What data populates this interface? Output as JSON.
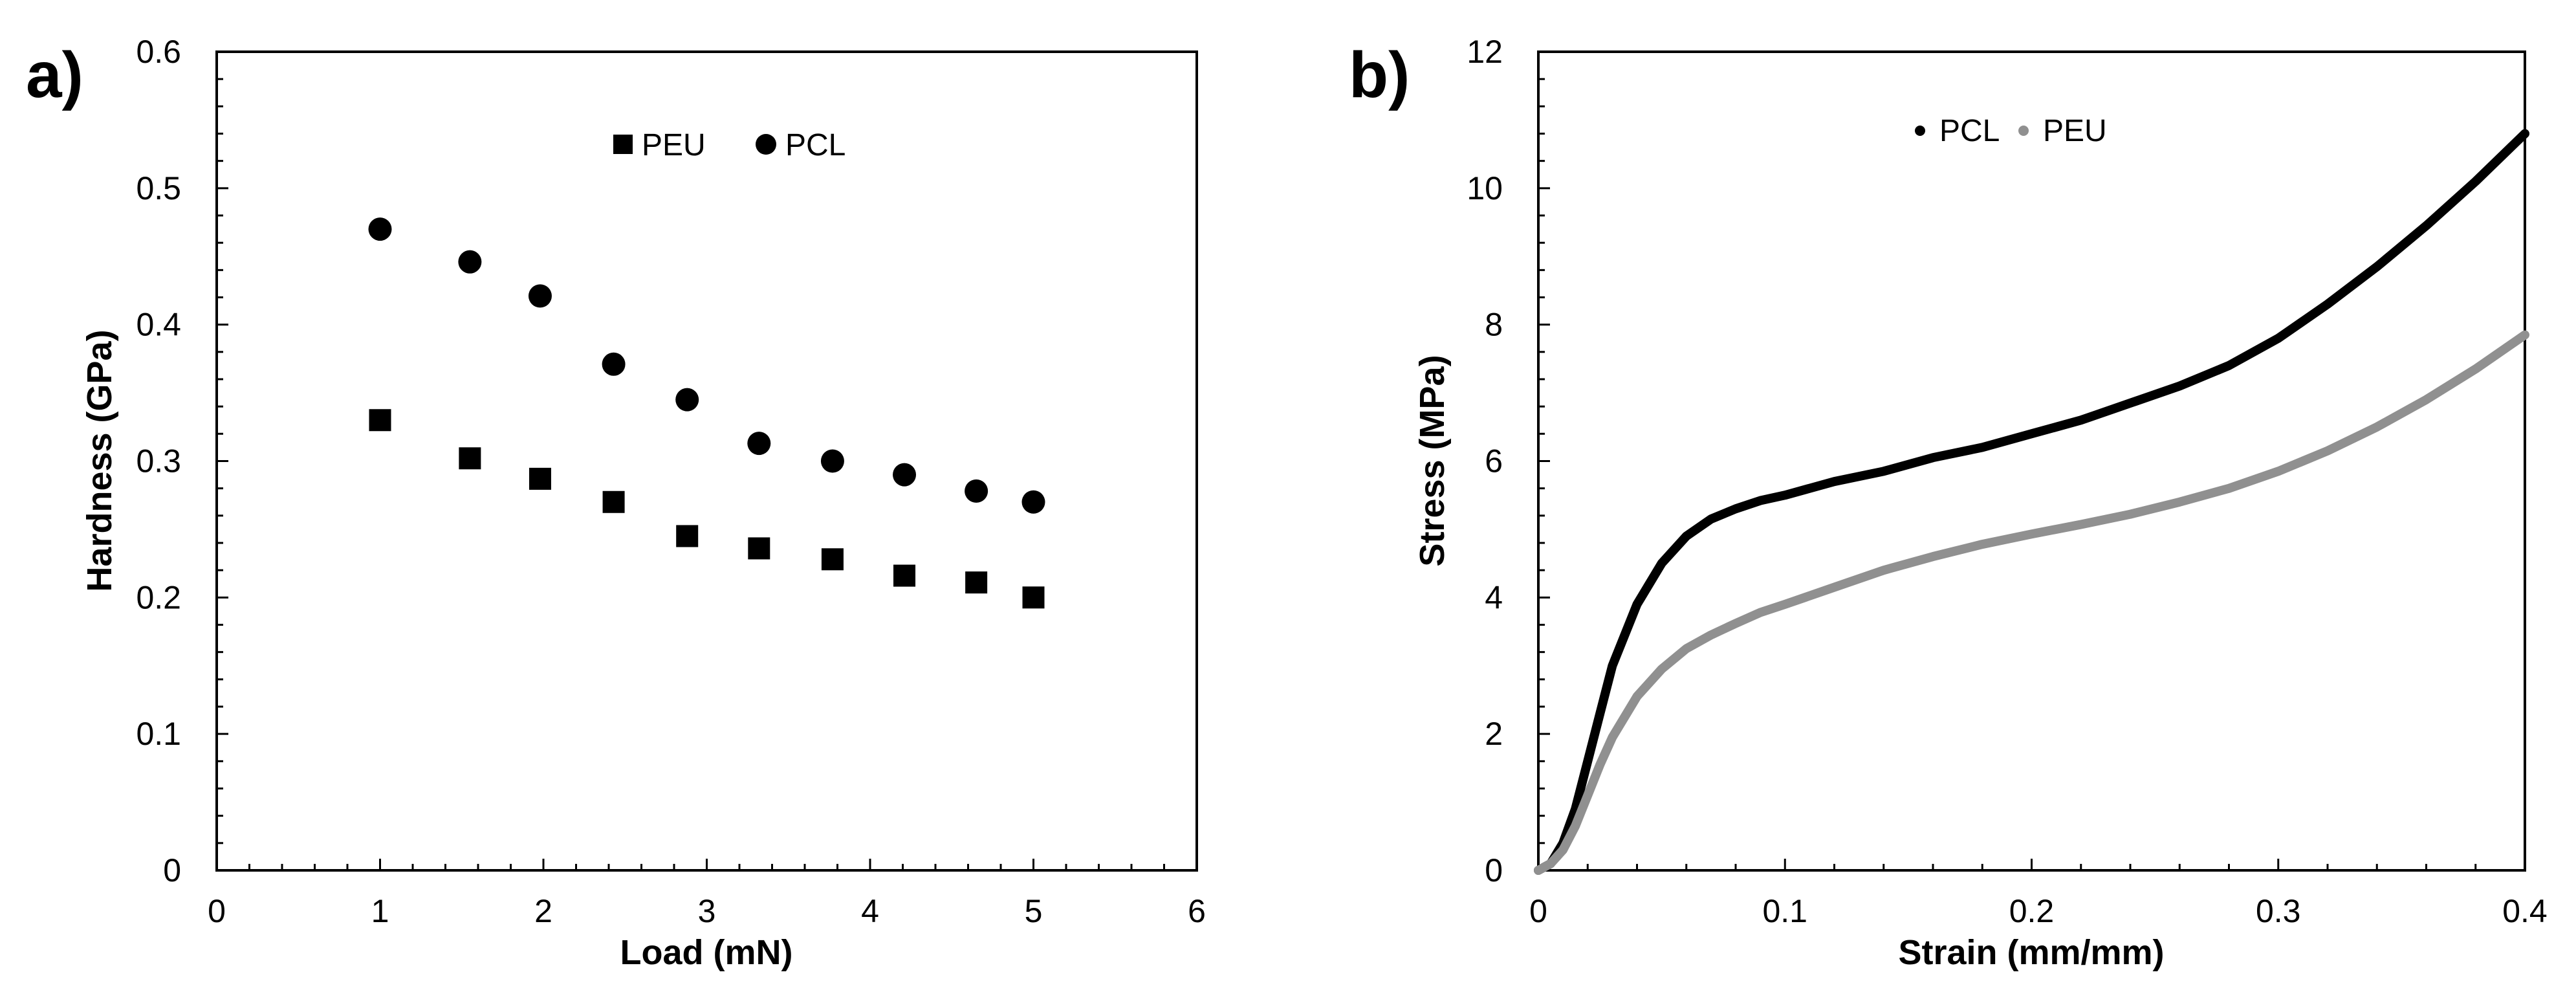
{
  "chart_data": [
    {
      "type": "scatter",
      "panel_label": "a)",
      "xlabel": "Load (mN)",
      "ylabel": "Hardness (GPa)",
      "xlim": [
        0,
        6
      ],
      "ylim": [
        0,
        0.6
      ],
      "xticks": [
        0,
        1,
        2,
        3,
        4,
        5,
        6
      ],
      "yticks": [
        0,
        0.1,
        0.2,
        0.3,
        0.4,
        0.5,
        0.6
      ],
      "xtick_labels": [
        "0",
        "1",
        "2",
        "3",
        "4",
        "5",
        "6"
      ],
      "ytick_labels": [
        "0",
        "0.1",
        "0.2",
        "0.3",
        "0.4",
        "0.5",
        "0.6"
      ],
      "minor_ticks": true,
      "grid": false,
      "legend_position": "top-center",
      "series": [
        {
          "name": "PEU",
          "marker": "square",
          "color": "#000000",
          "x": [
            1.0,
            1.55,
            1.98,
            2.43,
            2.88,
            3.32,
            3.77,
            4.21,
            4.65,
            5.0
          ],
          "y": [
            0.33,
            0.302,
            0.287,
            0.27,
            0.245,
            0.236,
            0.228,
            0.216,
            0.211,
            0.2
          ]
        },
        {
          "name": "PCL",
          "marker": "circle",
          "color": "#000000",
          "x": [
            1.0,
            1.55,
            1.98,
            2.43,
            2.88,
            3.32,
            3.77,
            4.21,
            4.65,
            5.0
          ],
          "y": [
            0.47,
            0.446,
            0.421,
            0.371,
            0.345,
            0.313,
            0.3,
            0.29,
            0.278,
            0.27
          ]
        }
      ]
    },
    {
      "type": "line",
      "panel_label": "b)",
      "xlabel": "Strain (mm/mm)",
      "ylabel": "Stress (MPa)",
      "xlim": [
        0,
        0.4
      ],
      "ylim": [
        0,
        12
      ],
      "xticks": [
        0,
        0.1,
        0.2,
        0.3,
        0.4
      ],
      "yticks": [
        0,
        2,
        4,
        6,
        8,
        10,
        12
      ],
      "xtick_labels": [
        "0",
        "0.1",
        "0.2",
        "0.3",
        "0.4"
      ],
      "ytick_labels": [
        "0",
        "2",
        "4",
        "6",
        "8",
        "10",
        "12"
      ],
      "minor_ticks": true,
      "grid": false,
      "legend_position": "top-center",
      "series": [
        {
          "name": "PCL",
          "color": "#000000",
          "x": [
            0,
            0.005,
            0.01,
            0.015,
            0.02,
            0.025,
            0.03,
            0.04,
            0.05,
            0.06,
            0.07,
            0.08,
            0.09,
            0.1,
            0.12,
            0.14,
            0.16,
            0.18,
            0.2,
            0.22,
            0.24,
            0.26,
            0.28,
            0.3,
            0.32,
            0.34,
            0.36,
            0.38,
            0.4
          ],
          "y": [
            0,
            0.1,
            0.4,
            0.9,
            1.6,
            2.3,
            3.0,
            3.9,
            4.5,
            4.9,
            5.15,
            5.3,
            5.42,
            5.5,
            5.7,
            5.85,
            6.05,
            6.2,
            6.4,
            6.6,
            6.85,
            7.1,
            7.4,
            7.8,
            8.3,
            8.85,
            9.45,
            10.1,
            10.8
          ]
        },
        {
          "name": "PEU",
          "color": "#909090",
          "x": [
            0,
            0.005,
            0.01,
            0.015,
            0.02,
            0.025,
            0.03,
            0.04,
            0.05,
            0.06,
            0.07,
            0.08,
            0.09,
            0.1,
            0.12,
            0.14,
            0.16,
            0.18,
            0.2,
            0.22,
            0.24,
            0.26,
            0.28,
            0.3,
            0.32,
            0.34,
            0.36,
            0.38,
            0.4
          ],
          "y": [
            0,
            0.1,
            0.3,
            0.65,
            1.1,
            1.55,
            1.95,
            2.55,
            2.95,
            3.25,
            3.45,
            3.62,
            3.78,
            3.9,
            4.15,
            4.4,
            4.6,
            4.78,
            4.93,
            5.07,
            5.22,
            5.4,
            5.6,
            5.85,
            6.15,
            6.5,
            6.9,
            7.35,
            7.85
          ]
        }
      ]
    }
  ]
}
